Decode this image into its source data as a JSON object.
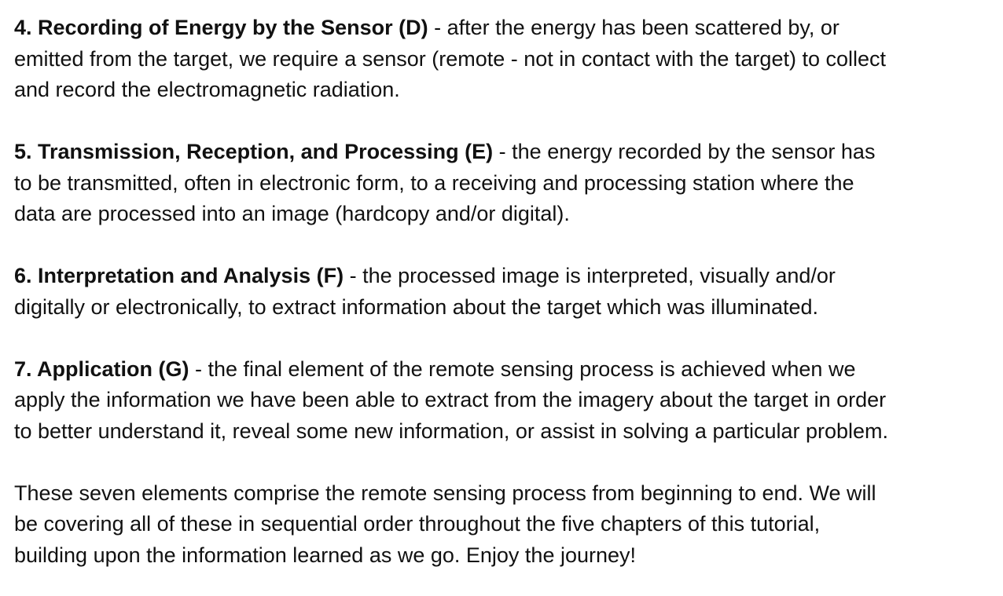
{
  "sections": [
    {
      "heading": "4. Recording of Energy by the Sensor (D)",
      "lines": [
        " - after the energy has been scattered by, or",
        "emitted from the target, we require a sensor (remote - not in contact with the target) to collect",
        "and record the electromagnetic radiation."
      ]
    },
    {
      "heading": "5. Transmission, Reception, and Processing (E)",
      "lines": [
        " - the energy recorded by the sensor has",
        "to be transmitted, often in electronic form, to a receiving and processing station where the",
        "data are processed into an image (hardcopy and/or digital)."
      ]
    },
    {
      "heading": "6. Interpretation and Analysis (F)",
      "lines": [
        " - the processed image is interpreted, visually and/or",
        "digitally or electronically, to extract information about the target which was illuminated."
      ]
    },
    {
      "heading": "7. Application (G)",
      "lines": [
        " - the final element of the remote sensing process is achieved when we",
        "apply the information we have been able to extract from the imagery about the target in order",
        "to better understand it, reveal some new information, or assist in solving a particular problem."
      ]
    }
  ],
  "closing": {
    "lines": [
      "These seven elements comprise the remote sensing process from beginning to end. We will",
      "be covering all of these in sequential order throughout the five chapters of this tutorial,",
      "building upon the information learned as we go. Enjoy the journey!"
    ]
  }
}
